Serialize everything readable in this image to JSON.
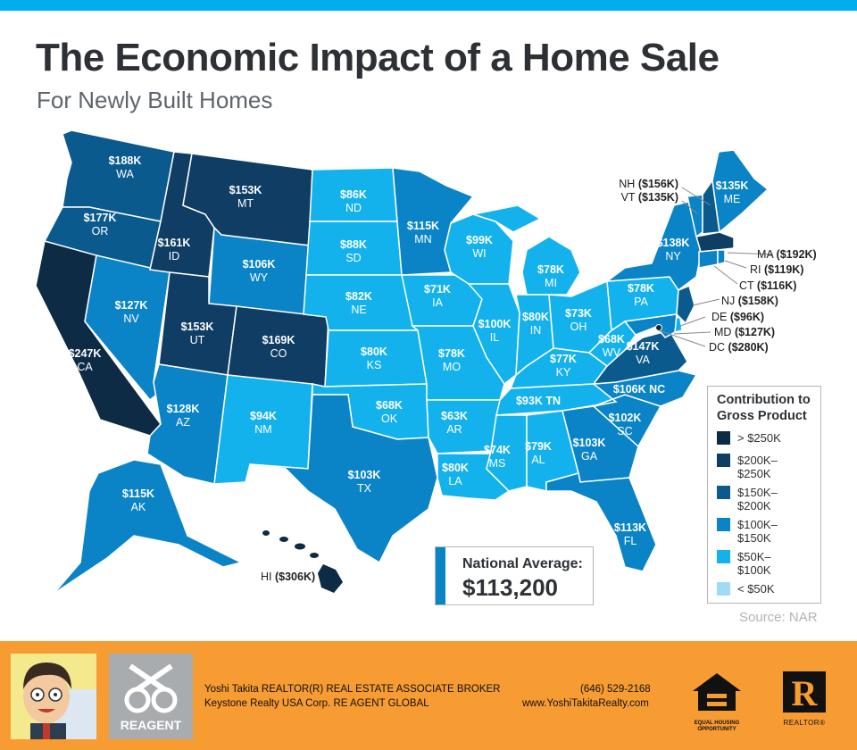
{
  "header": {
    "title": "The Economic Impact of a Home Sale",
    "subtitle": "For Newly Built Homes"
  },
  "colors": {
    "accent": "#00aeef",
    "footer": "#f79b33",
    "gt250": "#0d2b45",
    "r200_250": "#0f3d64",
    "r150_200": "#0a5a8e",
    "r100_150": "#0a84c6",
    "r50_100": "#14b2ed",
    "lt50": "#9fdcf3"
  },
  "states": {
    "WA": {
      "value": "$188K",
      "abbr": "WA"
    },
    "OR": {
      "value": "$177K",
      "abbr": "OR"
    },
    "CA": {
      "value": "$247K",
      "abbr": "CA"
    },
    "NV": {
      "value": "$127K",
      "abbr": "NV"
    },
    "ID": {
      "value": "$161K",
      "abbr": "ID"
    },
    "MT": {
      "value": "$153K",
      "abbr": "MT"
    },
    "WY": {
      "value": "$106K",
      "abbr": "WY"
    },
    "UT": {
      "value": "$153K",
      "abbr": "UT"
    },
    "AZ": {
      "value": "$128K",
      "abbr": "AZ"
    },
    "CO": {
      "value": "$169K",
      "abbr": "CO"
    },
    "NM": {
      "value": "$94K",
      "abbr": "NM"
    },
    "ND": {
      "value": "$86K",
      "abbr": "ND"
    },
    "SD": {
      "value": "$88K",
      "abbr": "SD"
    },
    "NE": {
      "value": "$82K",
      "abbr": "NE"
    },
    "KS": {
      "value": "$80K",
      "abbr": "KS"
    },
    "OK": {
      "value": "$68K",
      "abbr": "OK"
    },
    "TX": {
      "value": "$103K",
      "abbr": "TX"
    },
    "MN": {
      "value": "$115K",
      "abbr": "MN"
    },
    "IA": {
      "value": "$71K",
      "abbr": "IA"
    },
    "MO": {
      "value": "$78K",
      "abbr": "MO"
    },
    "AR": {
      "value": "$63K",
      "abbr": "AR"
    },
    "LA": {
      "value": "$80K",
      "abbr": "LA"
    },
    "WI": {
      "value": "$99K",
      "abbr": "WI"
    },
    "IL": {
      "value": "$100K",
      "abbr": "IL"
    },
    "MI": {
      "value": "$78K",
      "abbr": "MI"
    },
    "IN": {
      "value": "$80K",
      "abbr": "IN"
    },
    "OH": {
      "value": "$73K",
      "abbr": "OH"
    },
    "KY": {
      "value": "$77K",
      "abbr": "KY"
    },
    "TN": {
      "value": "$93K TN"
    },
    "MS": {
      "value": "$74K",
      "abbr": "MS"
    },
    "AL": {
      "value": "$79K",
      "abbr": "AL"
    },
    "GA": {
      "value": "$103K",
      "abbr": "GA"
    },
    "FL": {
      "value": "$113K",
      "abbr": "FL"
    },
    "SC": {
      "value": "$102K",
      "abbr": "SC"
    },
    "NC": {
      "value": "$106K NC"
    },
    "VA": {
      "value": "$147K",
      "abbr": "VA"
    },
    "WV": {
      "value": "$68K",
      "abbr": "WV"
    },
    "PA": {
      "value": "$78K",
      "abbr": "PA"
    },
    "NY": {
      "value": "$138K",
      "abbr": "NY"
    },
    "ME": {
      "value": "$135K",
      "abbr": "ME"
    },
    "AK": {
      "value": "$115K",
      "abbr": "AK"
    }
  },
  "callouts": {
    "NH": {
      "abbr": "NH",
      "value": "($156K)"
    },
    "VT": {
      "abbr": "VT",
      "value": "($135K)"
    },
    "MA": {
      "abbr": "MA",
      "value": "($192K)"
    },
    "RI": {
      "abbr": "RI",
      "value": "($119K)"
    },
    "CT": {
      "abbr": "CT",
      "value": "($116K)"
    },
    "NJ": {
      "abbr": "NJ",
      "value": "($158K)"
    },
    "DE": {
      "abbr": "DE",
      "value": "($96K)"
    },
    "MD": {
      "abbr": "MD",
      "value": "($127K)"
    },
    "DC": {
      "abbr": "DC",
      "value": "($280K)"
    },
    "HI": {
      "abbr": "HI",
      "value": "($306K)"
    }
  },
  "legend": {
    "title_line1": "Contribution to",
    "title_line2": "Gross Product",
    "items": [
      {
        "l1": "> $250K",
        "l2": ""
      },
      {
        "l1": "$200K–",
        "l2": "$250K"
      },
      {
        "l1": "$150K–",
        "l2": "$200K"
      },
      {
        "l1": "$100K–",
        "l2": "$150K"
      },
      {
        "l1": "$50K–",
        "l2": "$100K"
      },
      {
        "l1": "< $50K",
        "l2": ""
      }
    ]
  },
  "national_average": {
    "label": "National Average:",
    "value": "$113,200"
  },
  "source": "Source: NAR",
  "footer": {
    "agent_line": "Yoshi Takita REALTOR(R) REAL ESTATE ASSOCIATE BROKER",
    "company_line": "Keystone Realty USA Corp.  RE AGENT GLOBAL",
    "phone": "(646) 529-2168",
    "website": "www.YoshiTakitaRealty.com",
    "reagent_logo": "REAGENT",
    "eho_text_1": "EQUAL HOUSING",
    "eho_text_2": "OPPORTUNITY",
    "realtor_text": "REALTOR®"
  }
}
